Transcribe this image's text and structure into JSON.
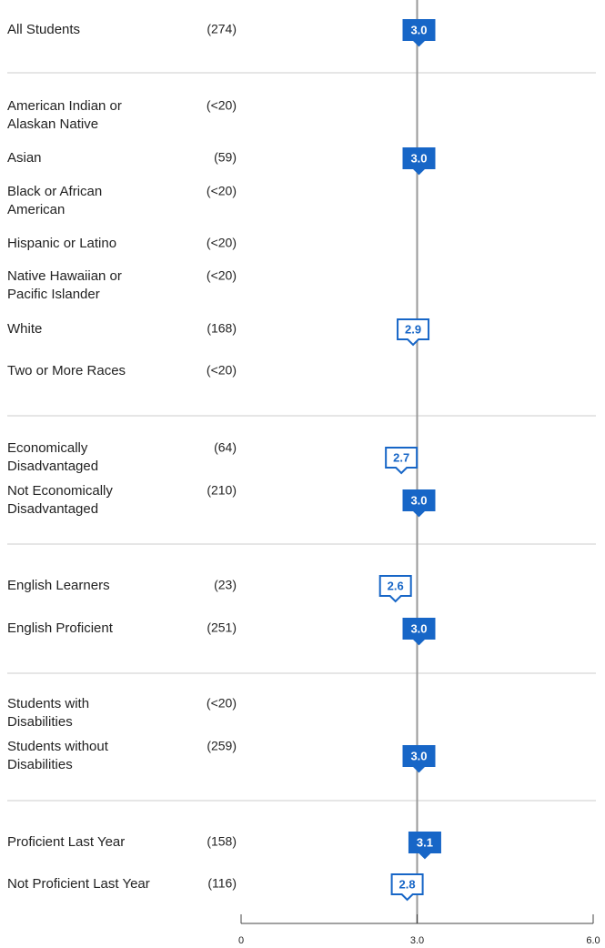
{
  "chart_data": {
    "type": "marker",
    "categories": [
      "All Students",
      "American Indian or\nAlaskan Native",
      "Asian",
      "Black or African\nAmerican",
      "Hispanic or Latino",
      "Native Hawaiian or\nPacific Islander",
      "White",
      "Two or More Races",
      "Economically\nDisadvantaged",
      "Not Economically\nDisadvantaged",
      "English Learners",
      "English Proficient",
      "Students with\nDisabilities",
      "Students without\nDisabilities",
      "Proficient Last Year",
      "Not Proficient Last Year"
    ],
    "counts": [
      "(274)",
      "(<20)",
      "(59)",
      "(<20)",
      "(<20)",
      "(<20)",
      "(168)",
      "(<20)",
      "(64)",
      "(210)",
      "(23)",
      "(251)",
      "(<20)",
      "(259)",
      "(158)",
      "(116)"
    ],
    "values": [
      3.0,
      null,
      3.0,
      null,
      null,
      null,
      2.9,
      null,
      2.7,
      3.0,
      2.6,
      3.0,
      null,
      3.0,
      3.1,
      2.8
    ],
    "value_labels": [
      "3.0",
      null,
      "3.0",
      null,
      null,
      null,
      "2.9",
      null,
      "2.7",
      "3.0",
      "2.6",
      "3.0",
      null,
      "3.0",
      "3.1",
      "2.8"
    ],
    "color": "#1766c7",
    "reference_line": 3,
    "xlim": [
      0,
      6
    ],
    "xticks": [
      0,
      {
        "value": 3,
        "label": "3.0"
      },
      {
        "value": 6,
        "label": "6.0"
      }
    ]
  }
}
